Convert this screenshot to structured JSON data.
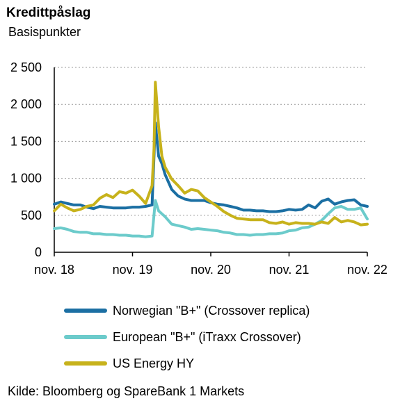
{
  "chart_data": {
    "type": "line",
    "title": "Kredittpåslag",
    "subtitle": "Basispunkter",
    "ylim": [
      0,
      2500
    ],
    "yticks": [
      0,
      500,
      1000,
      1500,
      2000,
      2500
    ],
    "ytick_labels": [
      "0",
      "500",
      "1 000",
      "1 500",
      "2 000",
      "2 500"
    ],
    "xlim": [
      0,
      48
    ],
    "xticks": [
      0,
      12,
      24,
      36,
      48
    ],
    "xtick_labels": [
      "nov. 18",
      "nov. 19",
      "nov. 20",
      "nov. 21",
      "nov. 22"
    ],
    "grid": "horizontal dotted",
    "legend_position": "below",
    "source": "Kilde: Bloomberg og SpareBank 1 Markets",
    "series": [
      {
        "name": "Norwegian \"B+\" (Crossover replica)",
        "color": "#1b6fa3",
        "x": [
          0,
          1,
          2,
          3,
          4,
          5,
          6,
          7,
          8,
          9,
          10,
          11,
          12,
          13,
          14,
          15,
          15.5,
          16,
          16.5,
          17,
          18,
          19,
          20,
          21,
          22,
          23,
          24,
          25,
          26,
          27,
          28,
          29,
          30,
          31,
          32,
          33,
          34,
          35,
          36,
          37,
          38,
          39,
          40,
          41,
          42,
          43,
          44,
          45,
          46,
          47,
          48
        ],
        "values": [
          650,
          680,
          660,
          640,
          640,
          610,
          590,
          620,
          610,
          600,
          600,
          600,
          610,
          610,
          620,
          640,
          1750,
          1300,
          1200,
          1050,
          850,
          760,
          720,
          700,
          700,
          700,
          670,
          650,
          640,
          620,
          600,
          570,
          570,
          560,
          560,
          550,
          550,
          560,
          580,
          570,
          580,
          640,
          600,
          690,
          720,
          650,
          680,
          700,
          710,
          640,
          620
        ]
      },
      {
        "name": "European \"B+\" (iTraxx Crossover)",
        "color": "#6ccbcb",
        "x": [
          0,
          1,
          2,
          3,
          4,
          5,
          6,
          7,
          8,
          9,
          10,
          11,
          12,
          13,
          14,
          15,
          15.5,
          16,
          16.5,
          17,
          18,
          19,
          20,
          21,
          22,
          23,
          24,
          25,
          26,
          27,
          28,
          29,
          30,
          31,
          32,
          33,
          34,
          35,
          36,
          37,
          38,
          39,
          40,
          41,
          42,
          43,
          44,
          45,
          46,
          47,
          48
        ],
        "values": [
          320,
          330,
          310,
          280,
          270,
          270,
          250,
          250,
          240,
          240,
          230,
          230,
          220,
          220,
          210,
          220,
          700,
          560,
          520,
          480,
          380,
          360,
          340,
          310,
          320,
          310,
          300,
          290,
          270,
          260,
          240,
          240,
          230,
          240,
          240,
          250,
          250,
          260,
          290,
          300,
          330,
          340,
          380,
          430,
          520,
          600,
          620,
          580,
          580,
          600,
          450
        ]
      },
      {
        "name": "US Energy HY",
        "color": "#c7b21b",
        "x": [
          0,
          1,
          2,
          3,
          4,
          5,
          6,
          7,
          8,
          9,
          10,
          11,
          12,
          13,
          14,
          15,
          15.3,
          15.5,
          16,
          16.5,
          17,
          18,
          19,
          20,
          21,
          22,
          23,
          24,
          25,
          26,
          27,
          28,
          29,
          30,
          31,
          32,
          33,
          34,
          35,
          36,
          37,
          38,
          39,
          40,
          41,
          42,
          43,
          44,
          45,
          46,
          47,
          48
        ],
        "values": [
          560,
          650,
          600,
          560,
          580,
          620,
          640,
          730,
          780,
          740,
          820,
          800,
          840,
          760,
          660,
          900,
          1400,
          2300,
          1700,
          1300,
          1150,
          990,
          900,
          800,
          850,
          830,
          740,
          680,
          620,
          550,
          500,
          460,
          450,
          440,
          440,
          440,
          400,
          390,
          410,
          380,
          400,
          390,
          390,
          380,
          410,
          390,
          470,
          410,
          430,
          410,
          370,
          380
        ]
      }
    ]
  }
}
